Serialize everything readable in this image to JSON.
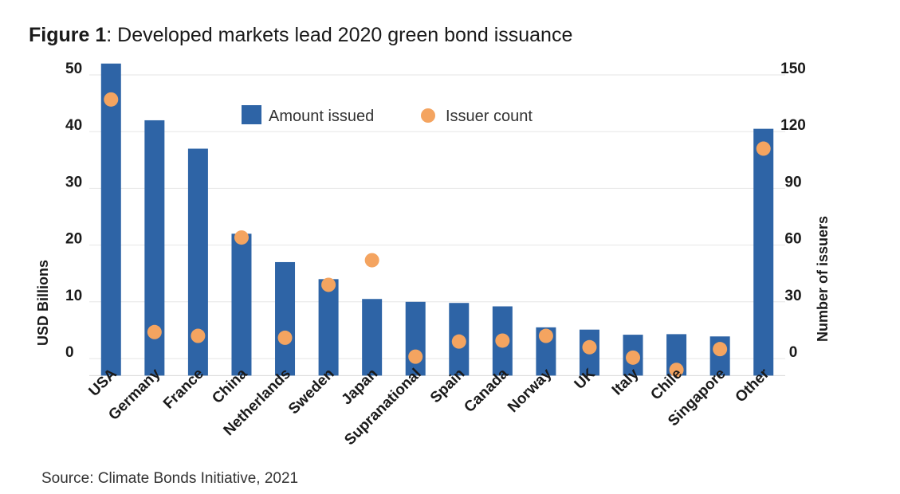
{
  "title": {
    "figure_label": "Figure 1",
    "text": ": Developed markets lead 2020 green bond issuance"
  },
  "source": "Source: Climate Bonds Initiative, 2021",
  "colors": {
    "bar": "#2e64a6",
    "dot": "#f4a460",
    "grid": "#e6e6e6"
  },
  "chart_data": {
    "type": "bar",
    "categories": [
      "USA",
      "Germany",
      "France",
      "China",
      "Netherlands",
      "Sweden",
      "Japan",
      "Supranational",
      "Spain",
      "Canada",
      "Norway",
      "UK",
      "Italy",
      "Chile",
      "Singapore",
      "Other"
    ],
    "series": [
      {
        "name": "Amount issued",
        "type": "bar",
        "axis": "left",
        "values": [
          52,
          42,
          37,
          22,
          17,
          14,
          10.5,
          10,
          9.8,
          9.2,
          5.5,
          5.1,
          4.2,
          4.3,
          3.9,
          40.5
        ]
      },
      {
        "name": "Issuer count",
        "type": "scatter",
        "axis": "right",
        "values": [
          137,
          14,
          12,
          64,
          11,
          39,
          52,
          1,
          9,
          9.5,
          12,
          6,
          0.5,
          -6,
          5,
          111
        ]
      }
    ],
    "y_left": {
      "label": "USD Billions",
      "ticks": [
        "50",
        "40",
        "30",
        "20",
        "10",
        "0"
      ],
      "ylim": [
        -3,
        50
      ]
    },
    "y_right": {
      "label": "Number of issuers",
      "ticks": [
        "150",
        "120",
        "90",
        "60",
        "30",
        "0"
      ],
      "ylim": [
        -9,
        150
      ]
    },
    "legend": {
      "position": "top-center",
      "entries": [
        "Amount issued",
        "Issuer count"
      ]
    },
    "grid": true
  }
}
